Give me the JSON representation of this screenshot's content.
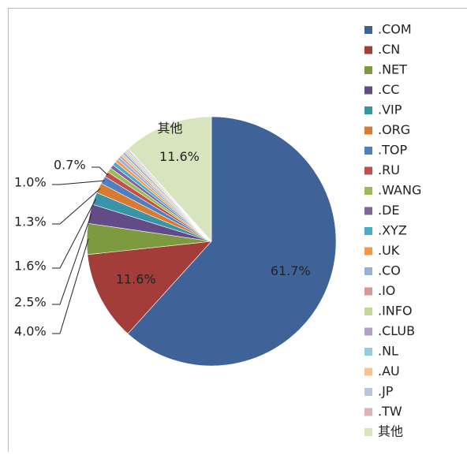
{
  "chart_data": {
    "type": "pie",
    "categories": [
      ".COM",
      ".CN",
      ".NET",
      ".CC",
      ".VIP",
      ".ORG",
      ".TOP",
      ".RU",
      ".WANG",
      ".DE",
      ".XYZ",
      ".UK",
      ".CO",
      ".IO",
      ".INFO",
      ".CLUB",
      ".NL",
      ".AU",
      ".JP",
      ".TW",
      "其他"
    ],
    "values": [
      61.7,
      11.6,
      4.0,
      2.5,
      1.6,
      1.3,
      1.0,
      0.7,
      0.6,
      0.5,
      0.5,
      0.4,
      0.4,
      0.3,
      0.3,
      0.3,
      0.2,
      0.2,
      0.2,
      0.1,
      11.6
    ],
    "value_labels": [
      "61.7%",
      "11.6%",
      "4.0%",
      "2.5%",
      "1.6%",
      "1.3%",
      "1.0%",
      "0.7%",
      null,
      null,
      null,
      null,
      null,
      null,
      null,
      null,
      null,
      null,
      null,
      null,
      "11.6%"
    ],
    "colors": [
      "#3f6398",
      "#a23d3a",
      "#7d9a3e",
      "#634b88",
      "#3a94a8",
      "#d87a30",
      "#4f7fbf",
      "#c0504d",
      "#9bbb59",
      "#8064a2",
      "#4bacc6",
      "#f79646",
      "#95b3d7",
      "#d99694",
      "#c3d69b",
      "#b3a2c7",
      "#93cddd",
      "#fac090",
      "#b9c7de",
      "#dcb4b4",
      "#d7e4bd"
    ],
    "legend": "right"
  }
}
